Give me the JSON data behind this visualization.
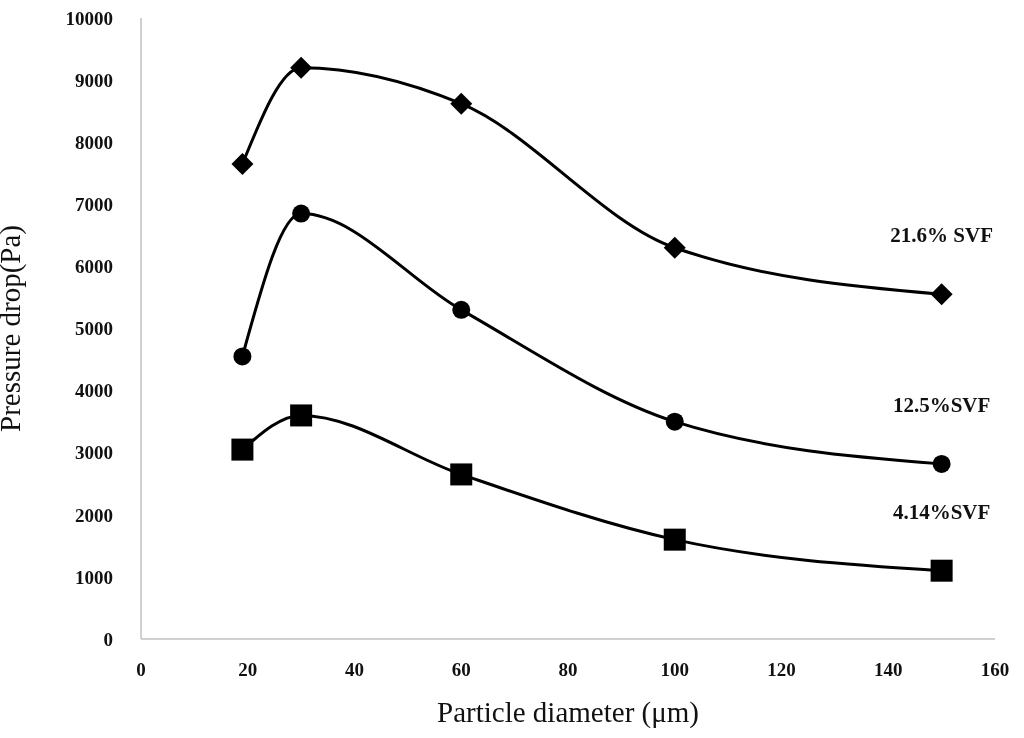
{
  "chart_data": {
    "type": "line",
    "xlabel": "Particle diameter (μm)",
    "ylabel": "Pressure drop(Pa)",
    "xlim": [
      0,
      160
    ],
    "xticks": [
      0,
      20,
      40,
      60,
      80,
      100,
      120,
      140,
      160
    ],
    "ylim": [
      0,
      10000
    ],
    "yticks": [
      0,
      1000,
      2000,
      3000,
      4000,
      5000,
      6000,
      7000,
      8000,
      9000,
      10000
    ],
    "x": [
      19,
      30,
      60,
      100,
      150
    ],
    "grid": false,
    "legend": false,
    "series": [
      {
        "name": "21.6% SVF",
        "color": "#000000",
        "marker": "diamond",
        "values": [
          7650,
          9200,
          8620,
          6300,
          5550
        ]
      },
      {
        "name": "12.5%SVF",
        "color": "#000000",
        "marker": "circle",
        "values": [
          4550,
          6850,
          5300,
          3500,
          2820
        ]
      },
      {
        "name": "4.14%SVF",
        "color": "#000000",
        "marker": "square",
        "values": [
          3050,
          3600,
          2650,
          1600,
          1100
        ]
      }
    ]
  }
}
